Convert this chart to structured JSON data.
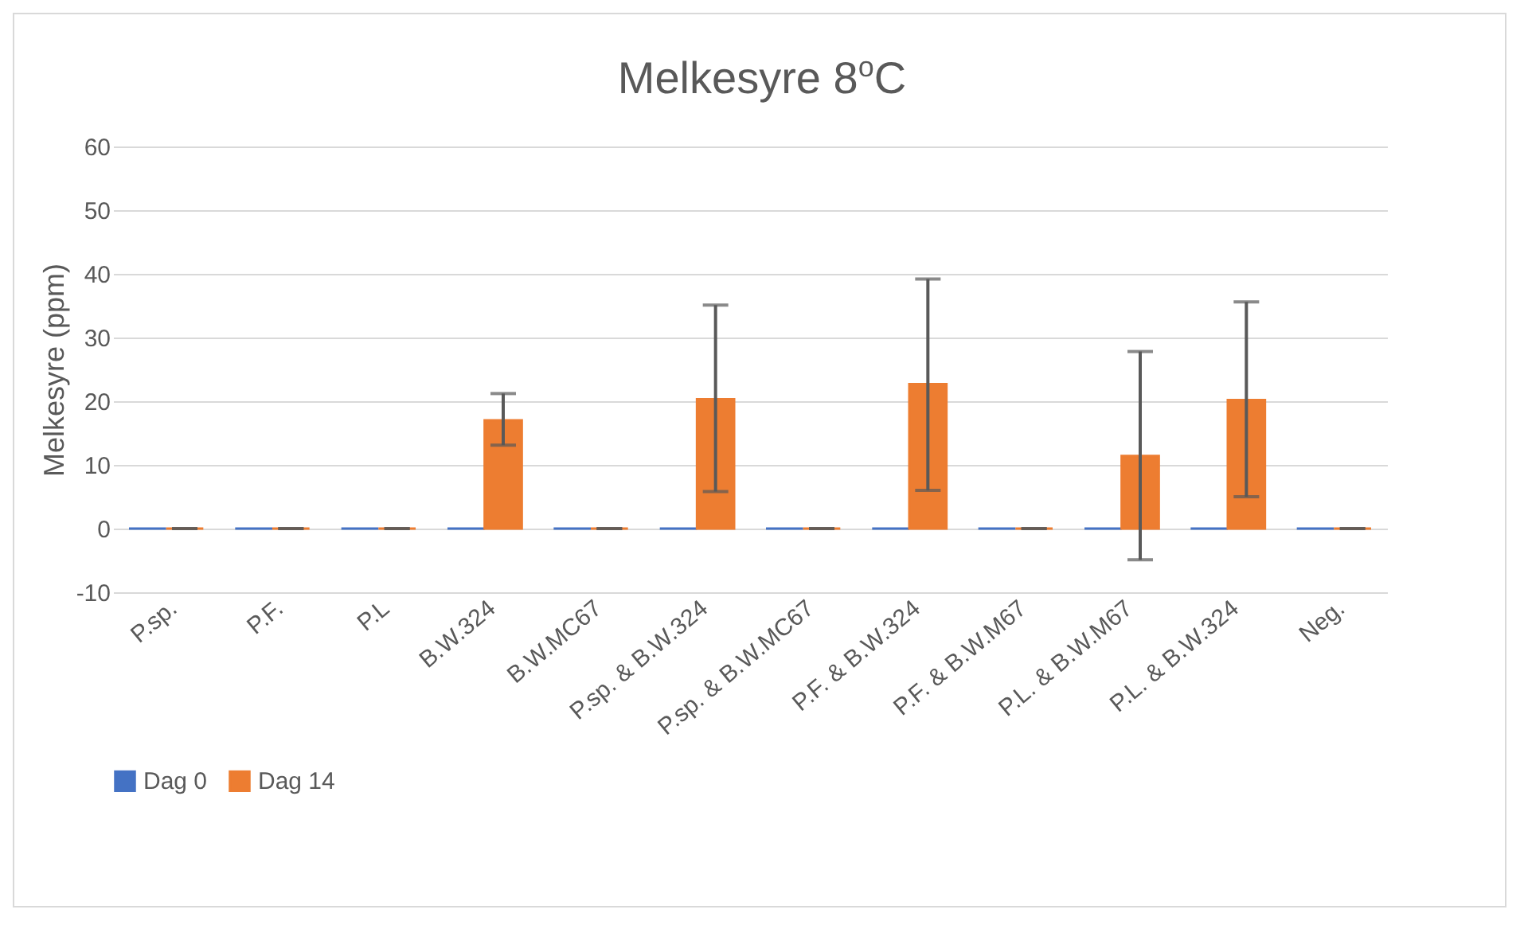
{
  "chart_data": {
    "type": "bar",
    "title": "Melkesyre 8$^{o}$C",
    "ylabel": "Melkesyre (ppm)",
    "categories": [
      "P.sp.",
      "P.F.",
      "P.L",
      "B.W.324",
      "B.W.MC67",
      "P.sp. & B.W.324",
      "P.sp. & B.W.MC67",
      "P.F. & B.W.324",
      "P.F. & B.W.M67",
      "P.L. & B.W.M67",
      "P.L. & B.W.324",
      "Neg."
    ],
    "series": [
      {
        "name": "Dag 0",
        "color": "#4472c4",
        "values": [
          0,
          0,
          0,
          0,
          0,
          0,
          0,
          0,
          0,
          0,
          0,
          0
        ]
      },
      {
        "name": "Dag 14",
        "color": "#ed7d31",
        "values": [
          0,
          0,
          0,
          17.0,
          0,
          20.3,
          0,
          22.7,
          0,
          11.4,
          20.2,
          0
        ],
        "errors": [
          [
            0,
            0
          ],
          [
            0,
            0
          ],
          [
            0,
            0
          ],
          [
            13.1,
            21.2
          ],
          [
            0,
            0
          ],
          [
            5.8,
            35.1
          ],
          [
            0,
            0
          ],
          [
            6.0,
            39.2
          ],
          [
            0,
            0
          ],
          [
            -4.9,
            27.8
          ],
          [
            5.0,
            35.6
          ],
          [
            0,
            0
          ]
        ]
      }
    ],
    "ylim": [
      -10,
      60
    ],
    "yticks": [
      -10,
      0,
      10,
      20,
      30,
      40,
      50,
      60
    ],
    "grid": "y",
    "legend": "bottom"
  }
}
